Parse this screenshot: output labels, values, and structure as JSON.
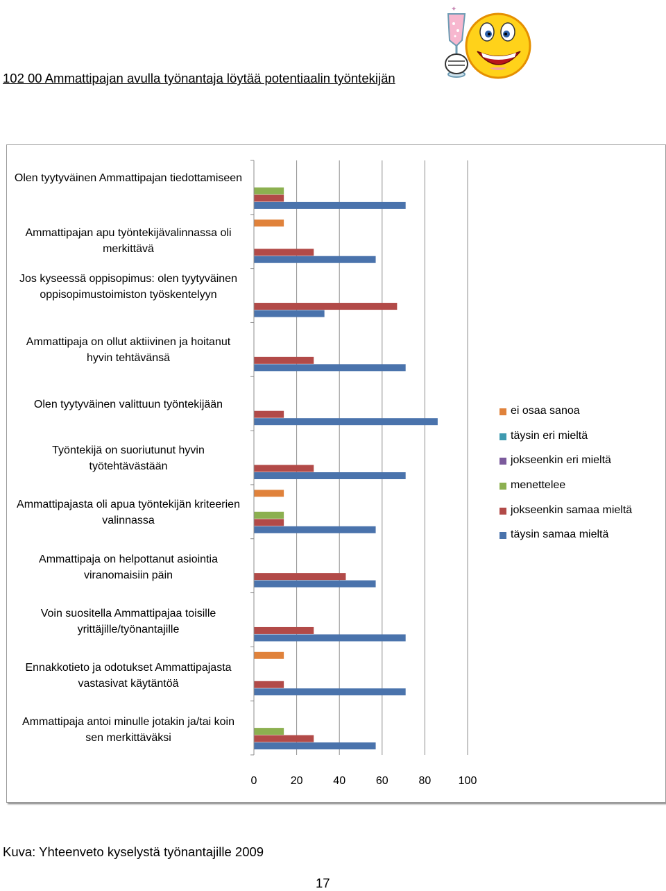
{
  "header": {
    "title": "102 00 Ammattipajan avulla työnantaja löytää potentiaalin työntekijän",
    "logo_icon": "smiley-with-champagne-glass"
  },
  "chart_data": {
    "type": "bar",
    "orientation": "horizontal",
    "categories": [
      "Olen tyytyväinen Ammattipajan tiedottamiseen",
      "Ammattipajan apu työntekijävalinnassa oli merkittävä",
      "Jos kyseessä oppisopimus: olen tyytyväinen oppisopimustoimiston työskentelyyn",
      "Ammattipaja on ollut aktiivinen ja hoitanut hyvin tehtävänsä",
      "Olen tyytyväinen valittuun työntekijään",
      "Työntekijä on suoriutunut hyvin työtehtävästään",
      "Ammattipajasta oli apua työntekijän kriteerien valinnassa",
      "Ammattipaja on helpottanut asiointia viranomaisiin päin",
      "Voin suositella Ammattipajaa toisille yrittäjille/työnantajille",
      "Ennakkotieto ja odotukset Ammattipajasta vastasivat käytäntöä",
      "Ammattipaja antoi minulle jotakin ja/tai koin sen merkittäväksi"
    ],
    "series": [
      {
        "name": "ei osaa sanoa",
        "color": "#E0823B",
        "values": [
          0,
          14,
          0,
          0,
          0,
          0,
          14,
          0,
          0,
          14,
          0
        ]
      },
      {
        "name": "täysin eri mieltä",
        "color": "#3E9AB0",
        "values": [
          0,
          0,
          0,
          0,
          0,
          0,
          0,
          0,
          0,
          0,
          0
        ]
      },
      {
        "name": "jokseenkin eri mieltä",
        "color": "#7B5A9C",
        "values": [
          0,
          0,
          0,
          0,
          0,
          0,
          0,
          0,
          0,
          0,
          0
        ]
      },
      {
        "name": "menettelee",
        "color": "#8CB050",
        "values": [
          14,
          0,
          0,
          0,
          0,
          0,
          14,
          0,
          0,
          0,
          14
        ]
      },
      {
        "name": "jokseenkin samaa mieltä",
        "color": "#B24A48",
        "values": [
          14,
          28,
          67,
          28,
          14,
          28,
          14,
          43,
          28,
          14,
          28
        ]
      },
      {
        "name": "täysin samaa mieltä",
        "color": "#4A73AC",
        "values": [
          71,
          57,
          33,
          71,
          86,
          71,
          57,
          57,
          71,
          71,
          57
        ]
      }
    ],
    "xlim": [
      0,
      100
    ],
    "x_ticks": [
      "0",
      "20",
      "40",
      "60",
      "80",
      "100"
    ],
    "grid": true,
    "legend_position": "right"
  },
  "caption": "Kuva:  Yhteenveto kyselystä työnantajille 2009",
  "page_number": "17"
}
